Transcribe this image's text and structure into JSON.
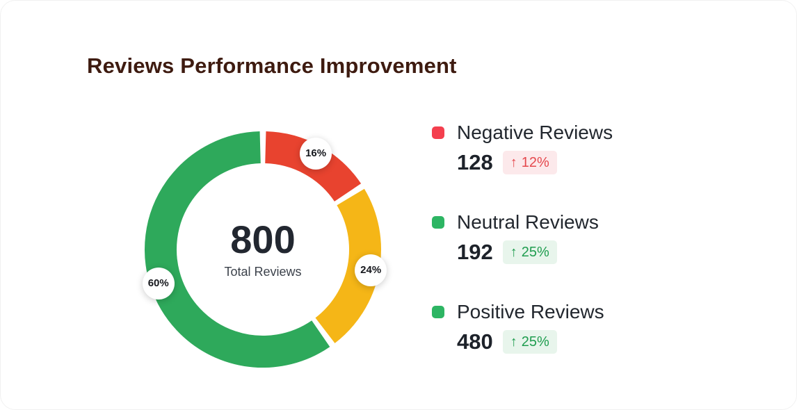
{
  "page": {
    "title": "Reviews Performance Improvement"
  },
  "colors": {
    "title_color": "#3E1B10",
    "negative_badge_bg": "#FCE9EB",
    "negative_badge_text": "#E5484D",
    "positive_badge_bg": "#E8F5EC",
    "positive_badge_text": "#1F9D4F"
  },
  "chart_data": {
    "type": "pie",
    "subtype": "donut",
    "title": "Reviews Performance Improvement",
    "total_value": "800",
    "total_label": "Total Reviews",
    "start_angle_deg": -90,
    "direction": "clockwise",
    "gap_deg": 3,
    "segments": [
      {
        "label": "Negative Reviews",
        "percent": 16,
        "value": 128,
        "color": "#E8432F"
      },
      {
        "label": "Neutral Reviews",
        "percent": 24,
        "value": 192,
        "color": "#F5B617"
      },
      {
        "label": "Positive Reviews",
        "percent": 60,
        "value": 480,
        "color": "#2EA95B"
      }
    ]
  },
  "legend": {
    "items": [
      {
        "label": "Negative Reviews",
        "value": "128",
        "arrow": "↑",
        "delta": "12%",
        "trend": "negative",
        "swatch_color": "#F43F4E"
      },
      {
        "label": "Neutral Reviews",
        "value": "192",
        "arrow": "↑",
        "delta": "25%",
        "trend": "positive",
        "swatch_color": "#2DB563"
      },
      {
        "label": "Positive Reviews",
        "value": "480",
        "arrow": "↑",
        "delta": "25%",
        "trend": "positive",
        "swatch_color": "#2DB563"
      }
    ]
  }
}
